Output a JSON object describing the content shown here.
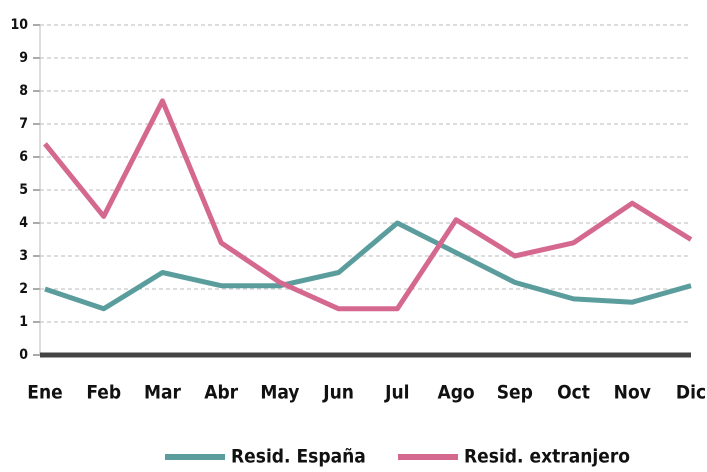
{
  "chart_data": {
    "type": "line",
    "categories": [
      "Ene",
      "Feb",
      "Mar",
      "Abr",
      "May",
      "Jun",
      "Jul",
      "Ago",
      "Sep",
      "Oct",
      "Nov",
      "Dic"
    ],
    "series": [
      {
        "name": "Resid. España",
        "color": "#5b9d9d",
        "values": [
          2.0,
          1.4,
          2.5,
          2.1,
          2.1,
          2.5,
          4.0,
          3.1,
          2.2,
          1.7,
          1.6,
          2.1
        ]
      },
      {
        "name": "Resid. extranjero",
        "color": "#d5688f",
        "values": [
          6.4,
          4.2,
          7.7,
          3.4,
          2.2,
          1.4,
          1.4,
          4.1,
          3.0,
          3.4,
          4.6,
          3.5
        ]
      }
    ],
    "ylim": [
      0,
      10
    ],
    "yticks": [
      0,
      1,
      2,
      3,
      4,
      5,
      6,
      7,
      8,
      9,
      10
    ],
    "grid": true,
    "legend": "bottom"
  }
}
